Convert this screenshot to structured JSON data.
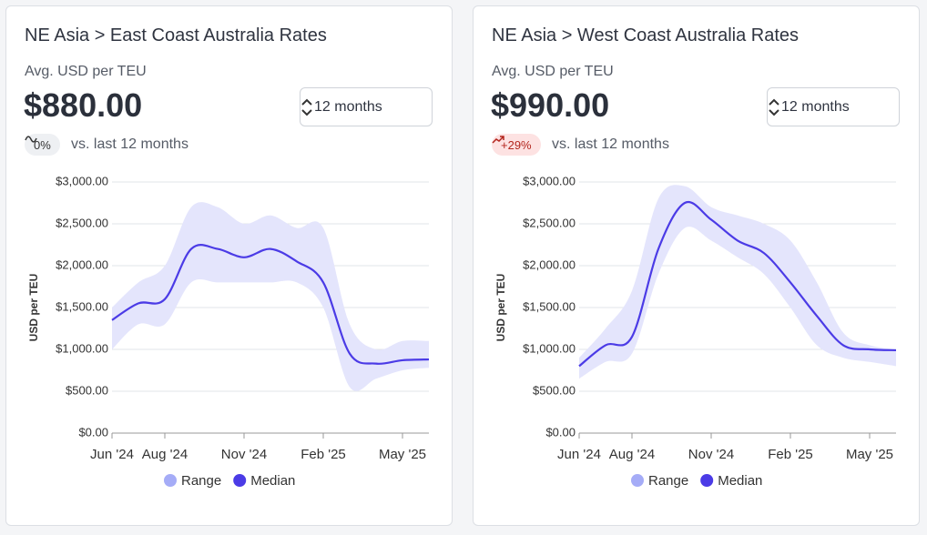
{
  "chart_data": [
    {
      "type": "line",
      "title": "NE Asia > East Coast Australia Rates",
      "metric_label": "Avg. USD per TEU",
      "value_text": "$880.00",
      "period": "12 months",
      "change": "0%",
      "change_note": "vs. last 12 months",
      "ylabel": "USD per TEU",
      "x": [
        "2024-06",
        "2024-07",
        "2024-08",
        "2024-09",
        "2024-10",
        "2024-11",
        "2024-12",
        "2025-01",
        "2025-02",
        "2025-03",
        "2025-04",
        "2025-05",
        "2025-06"
      ],
      "xticks": [
        {
          "value": "2024-06",
          "label": "Jun '24"
        },
        {
          "value": "2024-08",
          "label": "Aug '24"
        },
        {
          "value": "2024-11",
          "label": "Nov '24"
        },
        {
          "value": "2025-02",
          "label": "Feb '25"
        },
        {
          "value": "2025-05",
          "label": "May '25"
        }
      ],
      "ylim": [
        0,
        3000
      ],
      "yticks": [
        {
          "value": 0,
          "label": "$0.00"
        },
        {
          "value": 500,
          "label": "$500.00"
        },
        {
          "value": 1000,
          "label": "$1,000.00"
        },
        {
          "value": 1500,
          "label": "$1,500.00"
        },
        {
          "value": 2000,
          "label": "$2,000.00"
        },
        {
          "value": 2500,
          "label": "$2,500.00"
        },
        {
          "value": 3000,
          "label": "$3,000.00"
        }
      ],
      "grid": true,
      "series": [
        {
          "name": "Range",
          "color": "#a5acf7",
          "fill": "#e4e5fc",
          "low": [
            1000,
            1300,
            1300,
            1800,
            1800,
            1800,
            1800,
            1800,
            1500,
            550,
            650,
            750,
            780
          ],
          "high": [
            1500,
            1800,
            2000,
            2700,
            2700,
            2500,
            2600,
            2450,
            2450,
            1300,
            1000,
            1100,
            1100
          ]
        },
        {
          "name": "Median",
          "color": "#4b3be6",
          "values": [
            1350,
            1550,
            1600,
            2200,
            2200,
            2100,
            2200,
            2050,
            1800,
            950,
            830,
            870,
            880
          ]
        }
      ]
    },
    {
      "type": "line",
      "title": "NE Asia > West Coast Australia Rates",
      "metric_label": "Avg. USD per TEU",
      "value_text": "$990.00",
      "period": "12 months",
      "change": "+29%",
      "change_note": "vs. last 12 months",
      "ylabel": "USD per TEU",
      "x": [
        "2024-06",
        "2024-07",
        "2024-08",
        "2024-09",
        "2024-10",
        "2024-11",
        "2024-12",
        "2025-01",
        "2025-02",
        "2025-03",
        "2025-04",
        "2025-05",
        "2025-06"
      ],
      "xticks": [
        {
          "value": "2024-06",
          "label": "Jun '24"
        },
        {
          "value": "2024-08",
          "label": "Aug '24"
        },
        {
          "value": "2024-11",
          "label": "Nov '24"
        },
        {
          "value": "2025-02",
          "label": "Feb '25"
        },
        {
          "value": "2025-05",
          "label": "May '25"
        }
      ],
      "ylim": [
        0,
        3000
      ],
      "yticks": [
        {
          "value": 0,
          "label": "$0.00"
        },
        {
          "value": 500,
          "label": "$500.00"
        },
        {
          "value": 1000,
          "label": "$1,000.00"
        },
        {
          "value": 1500,
          "label": "$1,500.00"
        },
        {
          "value": 2000,
          "label": "$2,000.00"
        },
        {
          "value": 2500,
          "label": "$2,500.00"
        },
        {
          "value": 3000,
          "label": "$3,000.00"
        }
      ],
      "grid": true,
      "series": [
        {
          "name": "Range",
          "color": "#a5acf7",
          "fill": "#e4e5fc",
          "low": [
            650,
            850,
            950,
            1900,
            2450,
            2300,
            2100,
            1900,
            1500,
            1050,
            900,
            850,
            800
          ],
          "high": [
            900,
            1250,
            1700,
            2800,
            2950,
            2700,
            2600,
            2500,
            2300,
            1800,
            1200,
            1050,
            1000
          ]
        },
        {
          "name": "Median",
          "color": "#4b3be6",
          "values": [
            800,
            1050,
            1150,
            2200,
            2750,
            2550,
            2300,
            2150,
            1800,
            1400,
            1050,
            1000,
            990
          ]
        }
      ]
    }
  ]
}
